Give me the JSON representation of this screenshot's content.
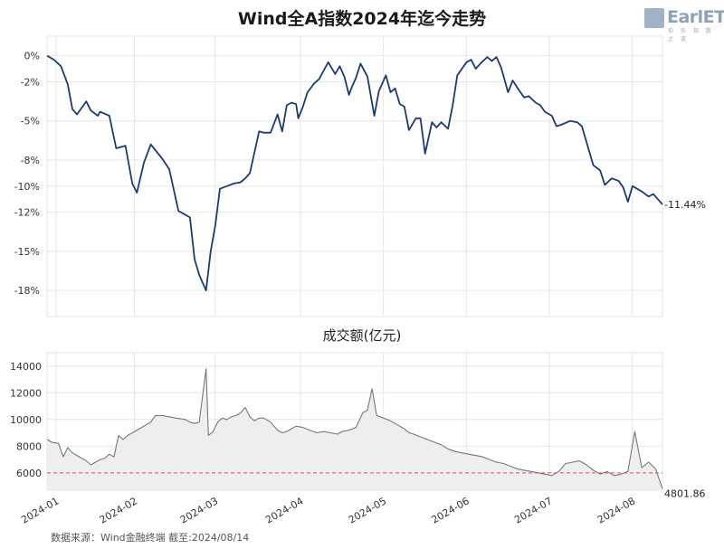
{
  "title": "Wind全A指数2024年迄今走势",
  "logo": {
    "text": "EarlETF",
    "subtitle": "伯 乐 指 数 之 道",
    "icon": "logo-mark-icon"
  },
  "volume_title": "成交额(亿元)",
  "source": "数据来源：Wind金融终端 截至:2024/08/14",
  "colors": {
    "index_line": "#1f3a6e",
    "volume_line": "#777777",
    "volume_fill": "#eeeeee",
    "ref_line": "#e05050",
    "grid": "#e6e6e6"
  },
  "chart_data": [
    {
      "type": "line",
      "title": "Wind全A指数2024年迄今走势",
      "ylim": [
        -20,
        1.5
      ],
      "yticks": [
        0,
        -2,
        -5,
        -8,
        -10,
        -12,
        -15,
        -18
      ],
      "ytick_labels": [
        "0%",
        "-2%",
        "-5%",
        "-8%",
        "-10%",
        "-12%",
        "-15%",
        "-18%"
      ],
      "end_label": "-11.44%",
      "grid": true,
      "x": [
        0,
        3,
        6,
        9,
        11,
        13,
        17,
        19,
        22,
        23,
        27,
        30,
        34,
        37,
        39,
        42,
        45,
        50,
        53,
        57,
        62,
        64,
        66,
        69,
        71,
        73,
        75,
        78,
        81,
        84,
        86,
        88,
        92,
        94,
        97,
        100,
        102,
        104,
        106,
        108,
        109,
        111,
        113,
        116,
        118,
        122,
        125,
        127,
        129,
        131,
        132,
        134,
        136,
        139,
        142,
        144,
        147,
        149,
        151,
        153,
        155,
        157,
        160,
        162,
        164,
        167,
        169,
        171,
        174,
        176,
        178,
        180,
        182,
        184,
        186,
        188,
        191,
        193,
        195,
        197,
        200,
        202,
        205,
        207,
        209,
        212,
        214,
        216,
        219,
        221,
        223,
        227,
        230,
        232,
        235,
        237,
        240,
        242,
        245,
        248,
        250,
        252,
        254,
        256,
        258,
        261,
        263,
        265,
        267
      ],
      "y": [
        0,
        -0.3,
        -0.8,
        -2.2,
        -4.1,
        -4.5,
        -3.5,
        -4.2,
        -4.6,
        -4.3,
        -4.6,
        -7.1,
        -6.9,
        -9.8,
        -10.5,
        -8.2,
        -6.8,
        -7.9,
        -8.7,
        -11.9,
        -12.4,
        -15.6,
        -16.8,
        -18.0,
        -15.0,
        -13.0,
        -10.2,
        -10.0,
        -9.8,
        -9.7,
        -9.4,
        -9.0,
        -5.8,
        -5.9,
        -5.9,
        -4.5,
        -5.8,
        -3.8,
        -3.6,
        -3.7,
        -4.8,
        -3.9,
        -2.8,
        -2.1,
        -1.8,
        -0.5,
        -1.4,
        -0.8,
        -1.6,
        -3.0,
        -2.5,
        -1.7,
        -0.6,
        -1.6,
        -4.6,
        -2.7,
        -1.5,
        -2.8,
        -2.5,
        -3.7,
        -3.9,
        -5.7,
        -4.8,
        -4.8,
        -7.5,
        -5.1,
        -5.5,
        -5.1,
        -5.6,
        -3.8,
        -1.5,
        -1.0,
        -0.5,
        -0.3,
        -1.0,
        -0.6,
        -0.1,
        -0.4,
        -0.1,
        -0.9,
        -2.8,
        -1.9,
        -2.7,
        -3.2,
        -3.1,
        -3.6,
        -3.8,
        -4.3,
        -4.6,
        -5.4,
        -5.3,
        -5.0,
        -5.1,
        -5.4,
        -7.2,
        -8.4,
        -8.8,
        -9.9,
        -9.4,
        -9.6,
        -10.1,
        -11.2,
        -10.0,
        -10.2,
        -10.4,
        -10.8,
        -10.6,
        -11.0,
        -11.4
      ]
    },
    {
      "type": "area",
      "title": "成交额(亿元)",
      "ylim": [
        4700,
        15000
      ],
      "yticks": [
        6000,
        8000,
        10000,
        12000,
        14000
      ],
      "ytick_labels": [
        "6000",
        "8000",
        "10000",
        "12000",
        "14000"
      ],
      "reference_line": 6000,
      "end_label": "4801.86",
      "grid": true,
      "x_ticks": [
        {
          "x": 0,
          "label": "2024-01"
        },
        {
          "x": 34,
          "label": "2024-02"
        },
        {
          "x": 69,
          "label": "2024-03"
        },
        {
          "x": 106,
          "label": "2024-04"
        },
        {
          "x": 142,
          "label": "2024-05"
        },
        {
          "x": 178,
          "label": "2024-06"
        },
        {
          "x": 214,
          "label": "2024-07"
        },
        {
          "x": 250,
          "label": "2024-08"
        }
      ],
      "x": [
        0,
        2,
        5,
        7,
        9,
        11,
        13,
        15,
        17,
        19,
        21,
        23,
        25,
        27,
        29,
        31,
        33,
        35,
        37,
        39,
        41,
        43,
        45,
        47,
        50,
        53,
        56,
        60,
        62,
        64,
        66,
        69,
        70,
        72,
        74,
        76,
        78,
        80,
        82,
        84,
        86,
        88,
        90,
        92,
        94,
        97,
        100,
        102,
        104,
        106,
        108,
        111,
        114,
        117,
        120,
        123,
        126,
        128,
        131,
        134,
        137,
        139,
        141,
        143,
        146,
        149,
        152,
        155,
        157,
        159,
        162,
        165,
        168,
        171,
        174,
        177,
        180,
        183,
        186,
        189,
        192,
        195,
        198,
        201,
        204,
        207,
        210,
        213,
        216,
        219,
        222,
        225,
        228,
        231,
        234,
        237,
        240,
        243,
        246,
        249,
        252,
        255,
        258,
        261,
        264,
        267
      ],
      "y": [
        8500,
        8300,
        8200,
        7200,
        7900,
        7500,
        7300,
        7100,
        6900,
        6600,
        6800,
        7000,
        7100,
        7400,
        7200,
        8800,
        8500,
        8800,
        9000,
        9200,
        9400,
        9600,
        9800,
        10300,
        10300,
        10200,
        10100,
        10000,
        9800,
        9700,
        9800,
        13800,
        8800,
        9100,
        9800,
        10100,
        10000,
        10200,
        10300,
        10500,
        10900,
        10200,
        9900,
        10100,
        10100,
        9800,
        9200,
        9000,
        9100,
        9300,
        9500,
        9400,
        9200,
        9000,
        9100,
        9000,
        8900,
        9100,
        9200,
        9400,
        10500,
        10700,
        12300,
        10300,
        10100,
        9900,
        9600,
        9300,
        9000,
        8900,
        8700,
        8500,
        8300,
        8100,
        7800,
        7600,
        7500,
        7400,
        7300,
        7200,
        7000,
        6800,
        6700,
        6500,
        6300,
        6200,
        6100,
        6000,
        5900,
        5800,
        6100,
        6700,
        6800,
        6900,
        6600,
        6200,
        5900,
        6100,
        5800,
        5900,
        6100,
        9100,
        6400,
        6800,
        6300,
        4801.86
      ]
    }
  ]
}
